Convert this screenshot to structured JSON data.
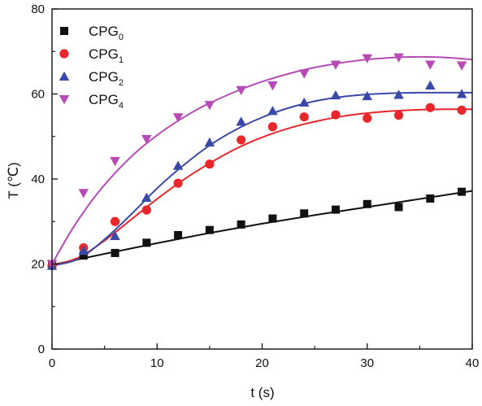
{
  "chart_data": {
    "type": "scatter",
    "title": "",
    "xlabel": "t (s)",
    "ylabel": "T (℃)",
    "xlim": [
      0,
      40
    ],
    "ylim": [
      0,
      80
    ],
    "xticks": [
      0,
      10,
      20,
      30,
      40
    ],
    "yticks": [
      0,
      20,
      40,
      60,
      80
    ],
    "grid": false,
    "legend_position": "top-left",
    "series": [
      {
        "name": "CPG",
        "subscript": "0",
        "color": "#111111",
        "marker": "square",
        "points": [
          [
            0,
            19.8
          ],
          [
            3,
            22.0
          ],
          [
            6,
            22.6
          ],
          [
            9,
            25.0
          ],
          [
            12,
            26.8
          ],
          [
            15,
            28.0
          ],
          [
            18,
            29.3
          ],
          [
            21,
            30.7
          ],
          [
            24,
            31.9
          ],
          [
            27,
            32.8
          ],
          [
            30,
            34.1
          ],
          [
            33,
            33.4
          ],
          [
            36,
            35.4
          ],
          [
            39,
            37.0
          ]
        ],
        "fit": [
          [
            0,
            19.8
          ],
          [
            5,
            22.4
          ],
          [
            10,
            24.9
          ],
          [
            15,
            27.3
          ],
          [
            20,
            29.5
          ],
          [
            25,
            31.5
          ],
          [
            30,
            33.4
          ],
          [
            35,
            35.3
          ],
          [
            40,
            37.2
          ]
        ]
      },
      {
        "name": "CPG",
        "subscript": "1",
        "color": "#e8262b",
        "marker": "circle",
        "points": [
          [
            0,
            19.6
          ],
          [
            3,
            23.8
          ],
          [
            6,
            30.0
          ],
          [
            9,
            32.7
          ],
          [
            12,
            39.0
          ],
          [
            15,
            43.5
          ],
          [
            18,
            49.2
          ],
          [
            21,
            52.3
          ],
          [
            24,
            54.6
          ],
          [
            27,
            55.1
          ],
          [
            30,
            54.3
          ],
          [
            33,
            55.0
          ],
          [
            36,
            56.8
          ],
          [
            39,
            56.2
          ]
        ],
        "fit": [
          [
            0,
            19.6
          ],
          [
            2.5,
            21.5
          ],
          [
            5,
            25.5
          ],
          [
            7.5,
            30.4
          ],
          [
            10,
            35.3
          ],
          [
            12.5,
            39.8
          ],
          [
            15,
            43.7
          ],
          [
            17.5,
            47.1
          ],
          [
            20,
            49.8
          ],
          [
            22.5,
            51.9
          ],
          [
            25,
            53.5
          ],
          [
            27.5,
            54.7
          ],
          [
            30,
            55.5
          ],
          [
            32.5,
            56.0
          ],
          [
            35,
            56.3
          ],
          [
            37.5,
            56.4
          ],
          [
            40,
            56.4
          ]
        ]
      },
      {
        "name": "CPG",
        "subscript": "2",
        "color": "#3a49a6",
        "marker": "triangle-up",
        "points": [
          [
            0,
            19.6
          ],
          [
            3,
            23.1
          ],
          [
            6,
            26.6
          ],
          [
            9,
            35.6
          ],
          [
            12,
            43.1
          ],
          [
            15,
            48.6
          ],
          [
            18,
            53.5
          ],
          [
            21,
            56.0
          ],
          [
            24,
            58.0
          ],
          [
            27,
            59.7
          ],
          [
            30,
            59.5
          ],
          [
            33,
            59.8
          ],
          [
            36,
            62.0
          ],
          [
            39,
            60.0
          ]
        ],
        "fit": [
          [
            0,
            19.6
          ],
          [
            2.5,
            21.2
          ],
          [
            5,
            25.8
          ],
          [
            7.5,
            31.6
          ],
          [
            10,
            37.8
          ],
          [
            12.5,
            43.2
          ],
          [
            15,
            47.9
          ],
          [
            17.5,
            51.6
          ],
          [
            20,
            54.5
          ],
          [
            22.5,
            56.7
          ],
          [
            25,
            58.3
          ],
          [
            27.5,
            59.3
          ],
          [
            30,
            59.9
          ],
          [
            32.5,
            60.2
          ],
          [
            35,
            60.3
          ],
          [
            37.5,
            60.3
          ],
          [
            40,
            60.3
          ]
        ]
      },
      {
        "name": "CPG",
        "subscript": "4",
        "color": "#b74bb6",
        "marker": "triangle-down",
        "points": [
          [
            0,
            20.0
          ],
          [
            3,
            36.7
          ],
          [
            6,
            44.2
          ],
          [
            9,
            49.4
          ],
          [
            12,
            54.5
          ],
          [
            15,
            57.4
          ],
          [
            18,
            60.9
          ],
          [
            21,
            62.0
          ],
          [
            24,
            64.8
          ],
          [
            27,
            66.9
          ],
          [
            30,
            68.4
          ],
          [
            33,
            68.6
          ],
          [
            36,
            66.9
          ],
          [
            39,
            66.7
          ]
        ],
        "fit": [
          [
            0,
            20.0
          ],
          [
            2,
            28.5
          ],
          [
            4,
            35.6
          ],
          [
            6,
            41.4
          ],
          [
            8,
            46.3
          ],
          [
            10,
            50.3
          ],
          [
            12,
            53.7
          ],
          [
            14,
            56.6
          ],
          [
            16,
            59.0
          ],
          [
            18,
            61.1
          ],
          [
            20,
            62.9
          ],
          [
            22,
            64.4
          ],
          [
            24,
            65.7
          ],
          [
            26,
            66.7
          ],
          [
            28,
            67.5
          ],
          [
            30,
            68.1
          ],
          [
            32,
            68.5
          ],
          [
            34,
            68.7
          ],
          [
            36,
            68.7
          ],
          [
            38,
            68.5
          ],
          [
            40,
            68.1
          ]
        ]
      }
    ]
  }
}
